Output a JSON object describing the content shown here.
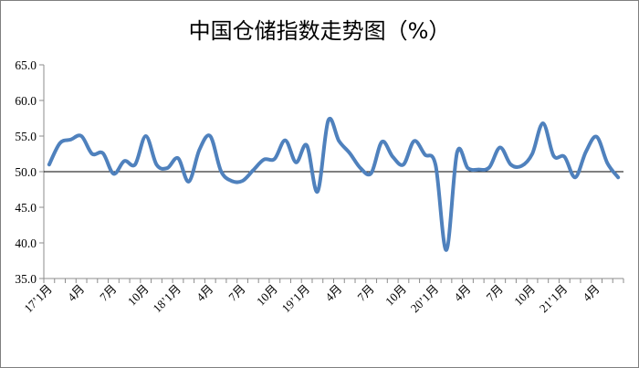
{
  "chart_data": {
    "type": "line",
    "title": "中国仓储指数走势图（%）",
    "xlabel": "",
    "ylabel": "",
    "ylim": [
      35,
      65
    ],
    "yticks": [
      "35.0",
      "40.0",
      "45.0",
      "50.0",
      "55.0",
      "60.0",
      "65.0"
    ],
    "reference_line": 50,
    "grid": false,
    "legend": "none",
    "x_tick_labels": [
      {
        "index": 0,
        "label": "17’1月"
      },
      {
        "index": 3,
        "label": "4月"
      },
      {
        "index": 6,
        "label": "7月"
      },
      {
        "index": 9,
        "label": "10月"
      },
      {
        "index": 12,
        "label": "18’1月"
      },
      {
        "index": 15,
        "label": "4月"
      },
      {
        "index": 18,
        "label": "7月"
      },
      {
        "index": 21,
        "label": "10月"
      },
      {
        "index": 24,
        "label": "19’1月"
      },
      {
        "index": 27,
        "label": "4月"
      },
      {
        "index": 30,
        "label": "7月"
      },
      {
        "index": 33,
        "label": "10月"
      },
      {
        "index": 36,
        "label": "20’1月"
      },
      {
        "index": 39,
        "label": "4月"
      },
      {
        "index": 42,
        "label": "7月"
      },
      {
        "index": 45,
        "label": "10月"
      },
      {
        "index": 48,
        "label": "21’1月"
      },
      {
        "index": 51,
        "label": "4月"
      }
    ],
    "series": [
      {
        "values": [
          51.0,
          54.0,
          54.5,
          55.0,
          52.5,
          52.6,
          49.7,
          51.5,
          51.0,
          55.0,
          51.0,
          50.5,
          51.9,
          48.6,
          53.1,
          55.0,
          50.1,
          48.7,
          48.7,
          50.2,
          51.7,
          51.8,
          54.4,
          51.3,
          53.7,
          47.2,
          57.2,
          54.3,
          52.6,
          50.5,
          49.8,
          54.2,
          52.1,
          51.0,
          54.3,
          52.4,
          50.9,
          39.0,
          52.7,
          50.5,
          50.3,
          50.6,
          53.4,
          51.0,
          50.8,
          52.5,
          56.8,
          52.2,
          52.1,
          49.2,
          52.8,
          54.9,
          51.2,
          49.2
        ],
        "color": "#4f81bd"
      }
    ]
  }
}
